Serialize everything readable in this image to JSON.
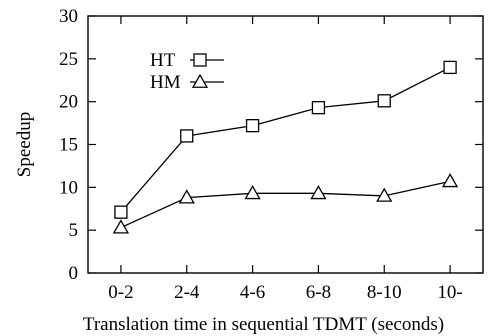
{
  "chart_data": {
    "type": "line",
    "categories": [
      "0-2",
      "2-4",
      "4-6",
      "6-8",
      "8-10",
      "10-"
    ],
    "series": [
      {
        "name": "HT",
        "marker": "square",
        "values": [
          7.1,
          16.0,
          17.2,
          19.3,
          20.1,
          24.0
        ]
      },
      {
        "name": "HM",
        "marker": "triangle",
        "values": [
          5.3,
          8.8,
          9.3,
          9.3,
          9.0,
          10.7
        ]
      }
    ],
    "xlabel": "Translation time in sequential TDMT (seconds)",
    "ylabel": "Speedup",
    "ylim": [
      0,
      30
    ],
    "yticks": [
      0,
      5,
      10,
      15,
      20,
      25,
      30
    ],
    "grid": false,
    "legend_position": "top-left"
  }
}
